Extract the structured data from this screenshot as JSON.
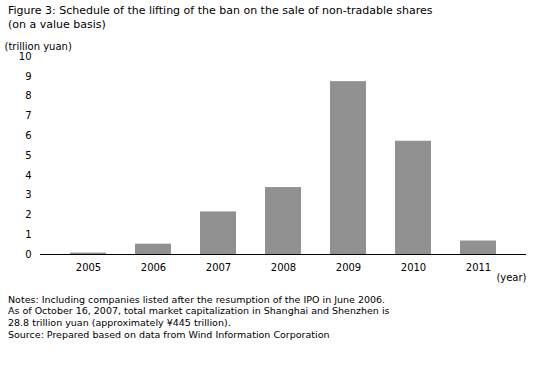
{
  "chart_data": {
    "type": "bar",
    "title": "Figure 3: Schedule of the lifting of the ban on the sale of non-tradable shares\n(on a value basis)",
    "xlabel": "(year)",
    "ylabel": "(trillion yuan)",
    "categories": [
      "2005",
      "2006",
      "2007",
      "2008",
      "2009",
      "2010",
      "2011"
    ],
    "values": [
      0.07,
      0.52,
      2.15,
      3.38,
      8.73,
      5.72,
      0.68
    ],
    "color": "#919191",
    "ylim": [
      0,
      10
    ],
    "yticks": [
      0,
      1,
      2,
      3,
      4,
      5,
      6,
      7,
      8,
      9,
      10
    ],
    "grid": false,
    "notes": "Notes: Including companies listed after the resumption of the IPO in June 2006.\nAs of October 16, 2007, total market capitalization in Shanghai and Shenzhen is\n28.8 trillion yuan (approximately ¥445 trillion).\nSource: Prepared based on data from Wind Information Corporation"
  }
}
